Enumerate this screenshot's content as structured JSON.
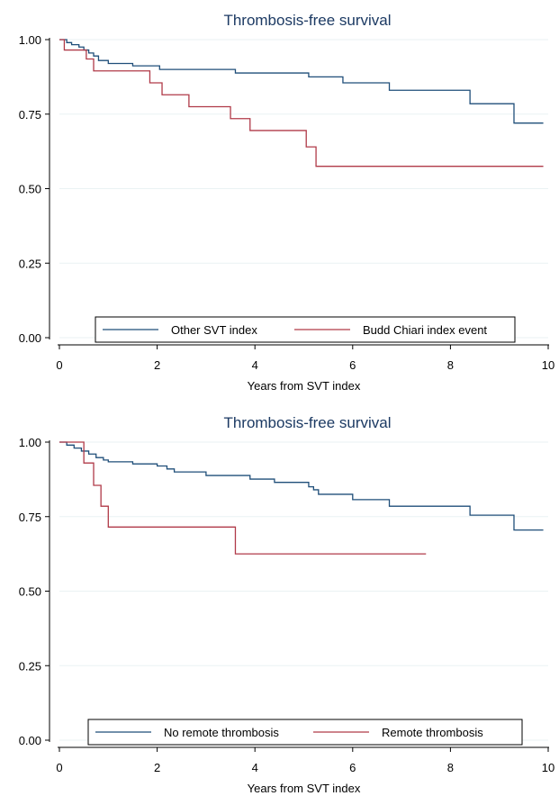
{
  "chart_data": [
    {
      "type": "line",
      "title": "Thrombosis-free survival",
      "xlabel": "Years from SVT index",
      "ylabel": "",
      "xlim": [
        0,
        10
      ],
      "ylim": [
        0,
        1
      ],
      "xticks": [
        0,
        2,
        4,
        6,
        8,
        10
      ],
      "xtick_labels": [
        "0",
        "2",
        "4",
        "6",
        "8",
        "10"
      ],
      "yticks": [
        0,
        0.25,
        0.5,
        0.75,
        1
      ],
      "ytick_labels": [
        "0.00",
        "0.25",
        "0.50",
        "0.75",
        "1.00"
      ],
      "grid": true,
      "legend_position": "bottom",
      "series": [
        {
          "name": "Other SVT index",
          "color": "#1f4e79",
          "step": true,
          "points": [
            [
              0,
              1.0
            ],
            [
              0.15,
              0.99
            ],
            [
              0.25,
              0.983
            ],
            [
              0.4,
              0.975
            ],
            [
              0.5,
              0.965
            ],
            [
              0.6,
              0.955
            ],
            [
              0.7,
              0.945
            ],
            [
              0.8,
              0.93
            ],
            [
              1.0,
              0.92
            ],
            [
              1.5,
              0.912
            ],
            [
              2.05,
              0.9
            ],
            [
              3.6,
              0.888
            ],
            [
              5.1,
              0.875
            ],
            [
              5.8,
              0.855
            ],
            [
              6.75,
              0.83
            ],
            [
              8.4,
              0.785
            ],
            [
              9.3,
              0.72
            ],
            [
              9.9,
              0.72
            ]
          ]
        },
        {
          "name": "Budd Chiari index event",
          "color": "#b03a48",
          "step": true,
          "points": [
            [
              0,
              1.0
            ],
            [
              0.1,
              0.965
            ],
            [
              0.55,
              0.935
            ],
            [
              0.7,
              0.895
            ],
            [
              1.85,
              0.855
            ],
            [
              2.1,
              0.815
            ],
            [
              2.65,
              0.775
            ],
            [
              3.5,
              0.735
            ],
            [
              3.9,
              0.695
            ],
            [
              5.05,
              0.64
            ],
            [
              5.25,
              0.575
            ],
            [
              9.9,
              0.575
            ]
          ]
        }
      ]
    },
    {
      "type": "line",
      "title": "Thrombosis-free survival",
      "xlabel": "Years from SVT index",
      "ylabel": "",
      "xlim": [
        0,
        10
      ],
      "ylim": [
        0,
        1
      ],
      "xticks": [
        0,
        2,
        4,
        6,
        8,
        10
      ],
      "xtick_labels": [
        "0",
        "2",
        "4",
        "6",
        "8",
        "10"
      ],
      "yticks": [
        0,
        0.25,
        0.5,
        0.75,
        1
      ],
      "ytick_labels": [
        "0.00",
        "0.25",
        "0.50",
        "0.75",
        "1.00"
      ],
      "grid": true,
      "legend_position": "bottom",
      "series": [
        {
          "name": "No remote thrombosis",
          "color": "#1f4e79",
          "step": true,
          "points": [
            [
              0,
              1.0
            ],
            [
              0.15,
              0.99
            ],
            [
              0.3,
              0.98
            ],
            [
              0.45,
              0.97
            ],
            [
              0.6,
              0.96
            ],
            [
              0.75,
              0.948
            ],
            [
              0.9,
              0.94
            ],
            [
              1.0,
              0.934
            ],
            [
              1.5,
              0.927
            ],
            [
              2.0,
              0.92
            ],
            [
              2.2,
              0.91
            ],
            [
              2.35,
              0.9
            ],
            [
              3.0,
              0.888
            ],
            [
              3.9,
              0.876
            ],
            [
              4.4,
              0.865
            ],
            [
              5.1,
              0.85
            ],
            [
              5.2,
              0.84
            ],
            [
              5.3,
              0.825
            ],
            [
              6.0,
              0.807
            ],
            [
              6.75,
              0.785
            ],
            [
              8.4,
              0.755
            ],
            [
              9.3,
              0.705
            ],
            [
              9.9,
              0.705
            ]
          ]
        },
        {
          "name": "Remote thrombosis",
          "color": "#b03a48",
          "step": true,
          "points": [
            [
              0,
              1.0
            ],
            [
              0.5,
              0.93
            ],
            [
              0.7,
              0.855
            ],
            [
              0.85,
              0.785
            ],
            [
              1.0,
              0.715
            ],
            [
              3.6,
              0.625
            ],
            [
              7.5,
              0.625
            ]
          ]
        }
      ]
    }
  ]
}
